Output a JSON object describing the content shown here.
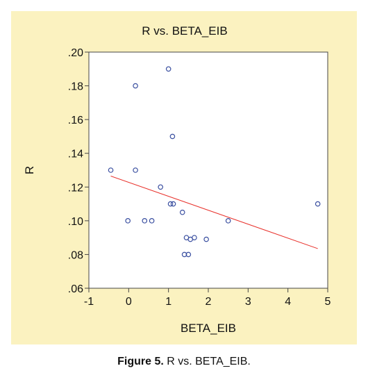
{
  "chart_data": {
    "type": "scatter",
    "title": "R vs. BETA_EIB",
    "xlabel": "BETA_EIB",
    "ylabel": "R",
    "xlim": [
      -1,
      5
    ],
    "ylim": [
      0.06,
      0.2
    ],
    "x_ticks": [
      -1,
      0,
      1,
      2,
      3,
      4,
      5
    ],
    "x_tick_labels": [
      "-1",
      "0",
      "1",
      "2",
      "3",
      "4",
      "5"
    ],
    "y_ticks": [
      0.06,
      0.08,
      0.1,
      0.12,
      0.14,
      0.16,
      0.18,
      0.2
    ],
    "y_tick_labels": [
      ".06",
      ".08",
      ".10",
      ".12",
      ".14",
      ".16",
      ".18",
      ".20"
    ],
    "grid": false,
    "points": [
      {
        "x": -0.45,
        "y": 0.13
      },
      {
        "x": 0.17,
        "y": 0.13
      },
      {
        "x": 0.17,
        "y": 0.18
      },
      {
        "x": 1.0,
        "y": 0.19
      },
      {
        "x": 1.1,
        "y": 0.15
      },
      {
        "x": 0.8,
        "y": 0.12
      },
      {
        "x": 1.05,
        "y": 0.11
      },
      {
        "x": 1.12,
        "y": 0.11
      },
      {
        "x": 4.75,
        "y": 0.11
      },
      {
        "x": 1.35,
        "y": 0.105
      },
      {
        "x": -0.02,
        "y": 0.1
      },
      {
        "x": 0.4,
        "y": 0.1
      },
      {
        "x": 0.58,
        "y": 0.1
      },
      {
        "x": 2.5,
        "y": 0.1
      },
      {
        "x": 1.45,
        "y": 0.09
      },
      {
        "x": 1.55,
        "y": 0.089
      },
      {
        "x": 1.65,
        "y": 0.09
      },
      {
        "x": 1.95,
        "y": 0.089
      },
      {
        "x": 1.4,
        "y": 0.08
      },
      {
        "x": 1.5,
        "y": 0.08
      }
    ],
    "fit_line": {
      "x": [
        -0.45,
        4.75
      ],
      "y": [
        0.1265,
        0.0835
      ]
    },
    "point_color": "#3a4fa0",
    "line_color": "#e8302a"
  },
  "caption": {
    "label": "Figure 5.",
    "text": " R vs. BETA_EIB."
  }
}
